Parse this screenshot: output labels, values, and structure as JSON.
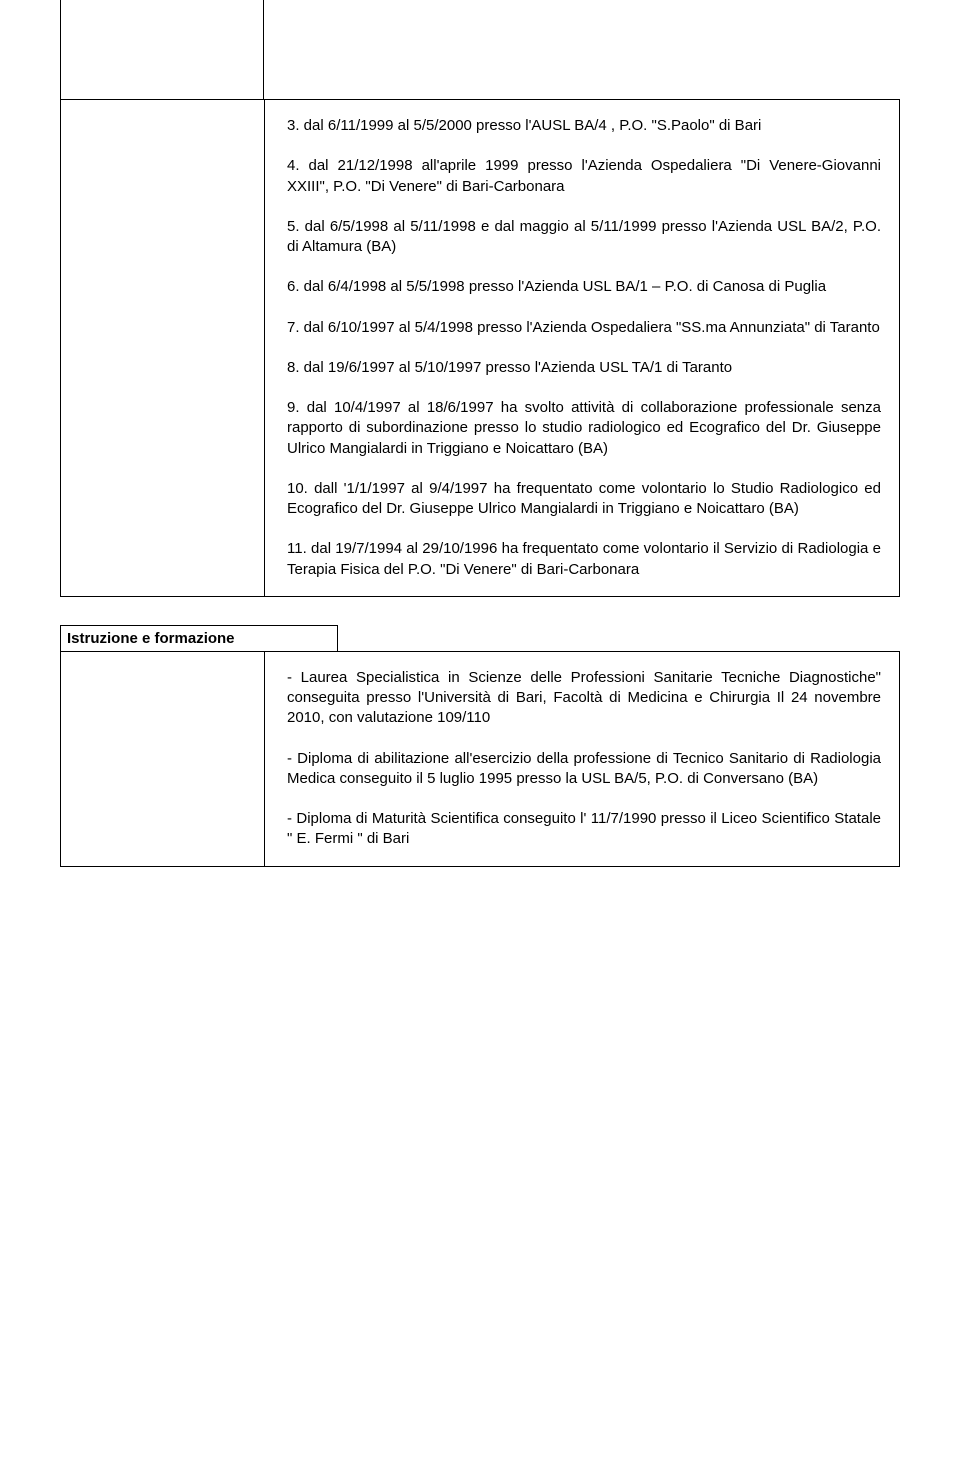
{
  "experience": {
    "entries": [
      "3. dal 6/11/1999 al 5/5/2000 presso l'AUSL BA/4 , P.O. \"S.Paolo\" di Bari",
      "4. dal 21/12/1998 all'aprile 1999 presso l'Azienda Ospedaliera \"Di Venere-Giovanni XXIII\", P.O. \"Di Venere\" di Bari-Carbonara",
      "5. dal 6/5/1998 al 5/11/1998 e dal maggio al 5/11/1999 presso l'Azienda USL BA/2, P.O. di Altamura (BA)",
      "6. dal 6/4/1998 al 5/5/1998 presso l'Azienda USL BA/1 – P.O. di Canosa di Puglia",
      "7. dal 6/10/1997 al 5/4/1998 presso l'Azienda Ospedaliera \"SS.ma Annunziata\" di Taranto",
      "8. dal 19/6/1997 al 5/10/1997 presso l'Azienda USL TA/1 di Taranto",
      "9. dal 10/4/1997 al 18/6/1997 ha svolto attività di collaborazione professionale senza rapporto di subordinazione presso lo studio radiologico ed Ecografico del Dr. Giuseppe Ulrico Mangialardi in Triggiano e Noicattaro (BA)",
      "10. dall '1/1/1997 al 9/4/1997 ha frequentato come volontario lo Studio Radiologico ed Ecografico del Dr. Giuseppe Ulrico Mangialardi in Triggiano e Noicattaro (BA)",
      "11. dal 19/7/1994 al 29/10/1996 ha frequentato come volontario il Servizio di Radiologia e Terapia Fisica del P.O. \"Di Venere\" di Bari-Carbonara"
    ]
  },
  "education": {
    "heading": "Istruzione e formazione",
    "entries": [
      "- Laurea Specialistica in Scienze delle Professioni Sanitarie Tecniche Diagnostiche\" conseguita presso l'Università di Bari, Facoltà di Medicina e Chirurgia Il 24 novembre 2010, con valutazione 109/110",
      "- Diploma di abilitazione all'esercizio della professione di Tecnico Sanitario di Radiologia Medica conseguito il 5 luglio 1995 presso la USL BA/5, P.O. di Conversano (BA)",
      "- Diploma di Maturità Scientifica conseguito l' 11/7/1990 presso il Liceo Scientifico Statale \" E. Fermi \" di Bari"
    ]
  }
}
